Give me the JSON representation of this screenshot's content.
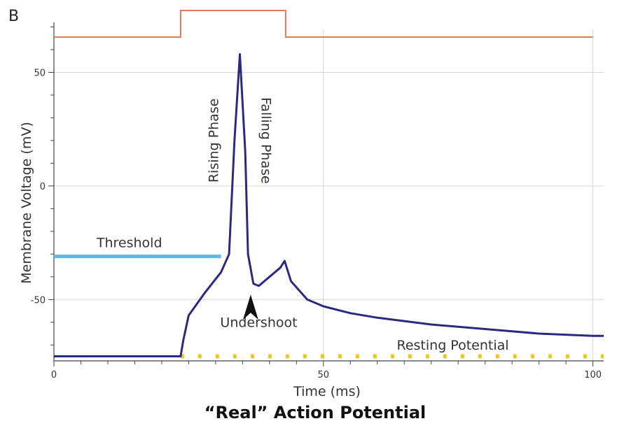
{
  "chart_data": {
    "type": "line",
    "panel_label": "B",
    "title": "“Real” Action Potential",
    "xlabel": "Time (ms)",
    "ylabel": "Membrane Voltage (mV)",
    "xlim": [
      0,
      102
    ],
    "ylim": [
      -77,
      72
    ],
    "xticks": [
      0,
      50,
      100
    ],
    "yticks": [
      50,
      0,
      -50
    ],
    "grid": true,
    "series": [
      {
        "color": "#2a2a80",
        "x": [
          0,
          10,
          20,
          23.5,
          24,
          25,
          28,
          31,
          32.5,
          33.5,
          34.5,
          35.5,
          36,
          37,
          38,
          40,
          42,
          42.8,
          44,
          47,
          50,
          55,
          60,
          70,
          80,
          90,
          100,
          102
        ],
        "y": [
          -75,
          -75,
          -75,
          -75,
          -68,
          -57,
          -47,
          -38,
          -30,
          20,
          58,
          15,
          -30,
          -43,
          -44,
          -40,
          -36,
          -33,
          -42,
          -50,
          -53,
          -56,
          -58,
          -61,
          -63,
          -65,
          -66,
          -66
        ]
      }
    ],
    "stimulus": {
      "color": "#e07a5f",
      "x": [
        0,
        23.5,
        23.5,
        43,
        43,
        100
      ],
      "level": [
        "low",
        "low",
        "high",
        "high",
        "low",
        "low"
      ]
    },
    "reference_lines": [
      {
        "label": "Threshold",
        "y": -31,
        "x": [
          0,
          31
        ],
        "color": "#5fb7e5",
        "style": "solid"
      },
      {
        "label": "Resting Potential",
        "y": -75,
        "x": [
          23.5,
          102
        ],
        "color": "#f5c518",
        "style": "dotted"
      }
    ],
    "annotations": [
      {
        "text": "Rising Phase",
        "x": 30.5,
        "y": 20,
        "rotation": -90
      },
      {
        "text": "Falling Phase",
        "x": 38.5,
        "y": 20,
        "rotation": 90
      },
      {
        "text": "Undershoot",
        "x": 38,
        "y": -62,
        "arrow_to": [
          36.5,
          -46
        ]
      },
      {
        "text": "Threshold",
        "x": 14,
        "y": -27
      },
      {
        "text": "Resting Potential",
        "x": 74,
        "y": -72
      }
    ]
  }
}
